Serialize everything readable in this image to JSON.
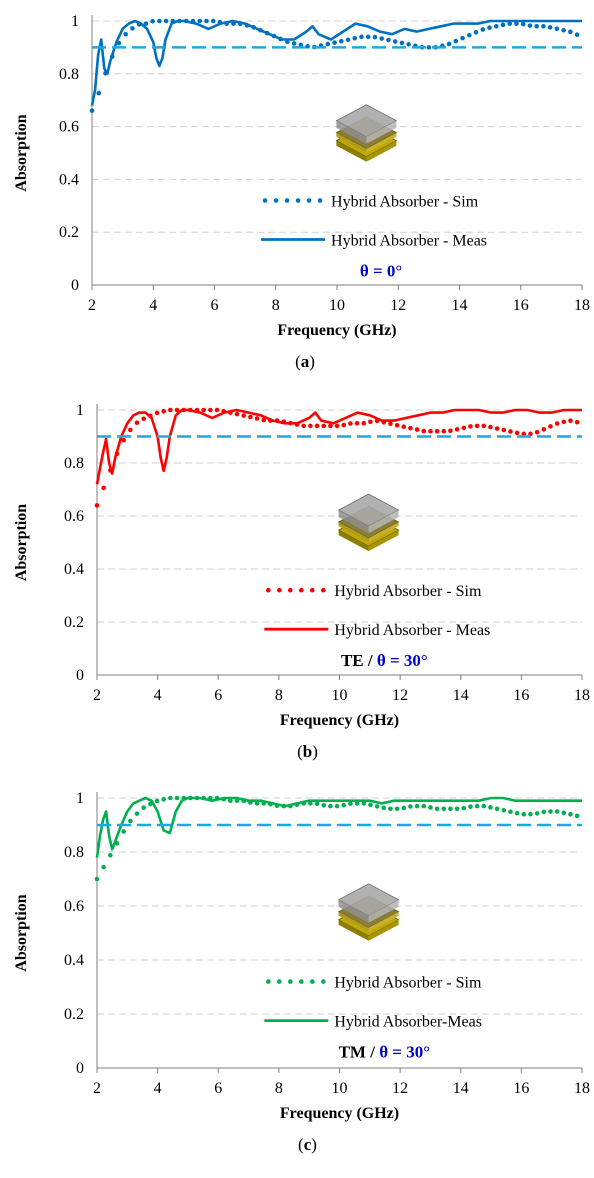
{
  "chart_data": [
    {
      "type": "line",
      "panel_label": "a",
      "xlabel": "Frequency (GHz)",
      "ylabel": "Absorption",
      "xlim": [
        2,
        18
      ],
      "ylim": [
        0,
        1
      ],
      "x_ticks": [
        "2",
        "4",
        "6",
        "8",
        "10",
        "12",
        "14",
        "16",
        "18"
      ],
      "y_ticks": [
        "0",
        "0.2",
        "0.4",
        "0.6",
        "0.8",
        "1"
      ],
      "grid": true,
      "legend_position": "center-right",
      "color": "#0070c0",
      "annotation": {
        "prefix": "",
        "angle": "θ = 0°"
      },
      "series": [
        {
          "name": "Hybrid Absorber - Sim",
          "style": "dotted",
          "x": [
            2.0,
            2.2,
            2.4,
            2.6,
            2.8,
            3.0,
            3.2,
            3.4,
            3.6,
            3.8,
            4.0,
            4.4,
            4.8,
            5.2,
            5.6,
            6.0,
            6.4,
            6.8,
            7.2,
            7.6,
            8.0,
            8.4,
            8.8,
            9.2,
            9.6,
            10.0,
            10.4,
            10.8,
            11.2,
            11.6,
            12.0,
            12.4,
            12.8,
            13.2,
            13.6,
            14.0,
            14.4,
            14.8,
            15.2,
            15.6,
            16.0,
            16.4,
            16.8,
            17.2,
            17.6,
            18.0
          ],
          "y": [
            0.66,
            0.72,
            0.79,
            0.85,
            0.9,
            0.94,
            0.96,
            0.98,
            0.99,
            0.99,
            1.0,
            1.0,
            1.0,
            1.0,
            1.0,
            1.0,
            0.99,
            0.99,
            0.98,
            0.96,
            0.94,
            0.92,
            0.91,
            0.9,
            0.91,
            0.92,
            0.93,
            0.94,
            0.94,
            0.93,
            0.92,
            0.91,
            0.9,
            0.9,
            0.91,
            0.93,
            0.95,
            0.97,
            0.98,
            0.99,
            0.99,
            0.98,
            0.98,
            0.97,
            0.96,
            0.94
          ]
        },
        {
          "name": "Hybrid Absorber - Meas",
          "style": "solid",
          "x": [
            2.0,
            2.1,
            2.2,
            2.3,
            2.4,
            2.5,
            2.6,
            2.8,
            3.0,
            3.2,
            3.4,
            3.6,
            3.8,
            4.0,
            4.1,
            4.2,
            4.3,
            4.4,
            4.6,
            4.8,
            5.0,
            5.4,
            5.8,
            6.2,
            6.6,
            7.0,
            7.4,
            7.8,
            8.2,
            8.6,
            9.0,
            9.2,
            9.4,
            9.8,
            10.2,
            10.6,
            11.0,
            11.4,
            11.8,
            12.2,
            12.6,
            13.0,
            13.4,
            13.8,
            14.2,
            14.6,
            15.0,
            15.4,
            15.8,
            16.2,
            16.6,
            17.0,
            17.4,
            17.8,
            18.0
          ],
          "y": [
            0.68,
            0.74,
            0.87,
            0.93,
            0.82,
            0.8,
            0.85,
            0.92,
            0.97,
            0.99,
            1.0,
            0.99,
            0.97,
            0.92,
            0.86,
            0.83,
            0.86,
            0.93,
            0.99,
            1.0,
            1.0,
            0.99,
            0.97,
            0.99,
            1.0,
            0.99,
            0.97,
            0.95,
            0.93,
            0.93,
            0.96,
            0.98,
            0.95,
            0.93,
            0.96,
            0.99,
            0.98,
            0.96,
            0.95,
            0.97,
            0.96,
            0.97,
            0.98,
            0.99,
            0.99,
            0.99,
            1.0,
            1.0,
            1.0,
            1.0,
            1.0,
            1.0,
            1.0,
            1.0,
            1.0
          ]
        },
        {
          "name": "",
          "style": "dashed",
          "x": [
            2,
            18
          ],
          "y": [
            0.9,
            0.9
          ]
        }
      ]
    },
    {
      "type": "line",
      "panel_label": "b",
      "xlabel": "Frequency (GHz)",
      "ylabel": "Absorption",
      "xlim": [
        2,
        18
      ],
      "ylim": [
        0,
        1
      ],
      "x_ticks": [
        "2",
        "4",
        "6",
        "8",
        "10",
        "12",
        "14",
        "16",
        "18"
      ],
      "y_ticks": [
        "0",
        "0.2",
        "0.4",
        "0.6",
        "0.8",
        "1"
      ],
      "grid": true,
      "legend_position": "center-right",
      "color": "#ff0000",
      "annotation": {
        "prefix": "TE / ",
        "angle": "θ = 30°"
      },
      "series": [
        {
          "name": "Hybrid Absorber - Sim",
          "style": "dotted",
          "x": [
            2.0,
            2.2,
            2.4,
            2.6,
            2.8,
            3.0,
            3.2,
            3.4,
            3.6,
            3.8,
            4.0,
            4.4,
            4.8,
            5.2,
            5.6,
            6.0,
            6.4,
            6.8,
            7.2,
            7.6,
            8.0,
            8.4,
            8.8,
            9.2,
            9.6,
            10.0,
            10.4,
            10.8,
            11.2,
            11.6,
            12.0,
            12.4,
            12.8,
            13.2,
            13.6,
            14.0,
            14.4,
            14.8,
            15.2,
            15.6,
            16.0,
            16.4,
            16.8,
            17.2,
            17.6,
            18.0
          ],
          "y": [
            0.64,
            0.7,
            0.76,
            0.82,
            0.87,
            0.91,
            0.94,
            0.96,
            0.97,
            0.98,
            0.99,
            1.0,
            1.0,
            1.0,
            1.0,
            1.0,
            0.99,
            0.98,
            0.97,
            0.96,
            0.96,
            0.95,
            0.94,
            0.94,
            0.94,
            0.94,
            0.95,
            0.95,
            0.96,
            0.95,
            0.94,
            0.93,
            0.92,
            0.92,
            0.92,
            0.93,
            0.94,
            0.94,
            0.93,
            0.92,
            0.91,
            0.91,
            0.93,
            0.95,
            0.96,
            0.95
          ]
        },
        {
          "name": "Hybrid Absorber - Meas",
          "style": "solid",
          "x": [
            2.0,
            2.1,
            2.2,
            2.3,
            2.4,
            2.5,
            2.6,
            2.8,
            3.0,
            3.2,
            3.4,
            3.6,
            3.8,
            4.0,
            4.1,
            4.2,
            4.3,
            4.4,
            4.6,
            4.8,
            5.0,
            5.4,
            5.8,
            6.2,
            6.6,
            7.0,
            7.4,
            7.8,
            8.2,
            8.6,
            9.0,
            9.2,
            9.4,
            9.8,
            10.2,
            10.6,
            11.0,
            11.4,
            11.8,
            12.2,
            12.6,
            13.0,
            13.4,
            13.8,
            14.2,
            14.6,
            15.0,
            15.4,
            15.8,
            16.2,
            16.6,
            17.0,
            17.4,
            17.8,
            18.0
          ],
          "y": [
            0.72,
            0.78,
            0.84,
            0.89,
            0.8,
            0.76,
            0.82,
            0.9,
            0.95,
            0.98,
            0.99,
            0.99,
            0.97,
            0.9,
            0.82,
            0.77,
            0.82,
            0.9,
            0.98,
            1.0,
            1.0,
            0.99,
            0.97,
            0.99,
            1.0,
            0.99,
            0.98,
            0.96,
            0.95,
            0.95,
            0.97,
            0.99,
            0.96,
            0.95,
            0.97,
            0.99,
            0.98,
            0.96,
            0.96,
            0.97,
            0.98,
            0.99,
            0.99,
            1.0,
            1.0,
            1.0,
            0.99,
            0.99,
            1.0,
            1.0,
            0.99,
            0.99,
            1.0,
            1.0,
            1.0
          ]
        },
        {
          "name": "",
          "style": "dashed",
          "x": [
            2,
            18
          ],
          "y": [
            0.9,
            0.9
          ]
        }
      ]
    },
    {
      "type": "line",
      "panel_label": "c",
      "xlabel": "Frequency (GHz)",
      "ylabel": "Absorption",
      "xlim": [
        2,
        18
      ],
      "ylim": [
        0,
        1
      ],
      "x_ticks": [
        "2",
        "4",
        "6",
        "8",
        "10",
        "12",
        "14",
        "16",
        "18"
      ],
      "y_ticks": [
        "0",
        "0.2",
        "0.4",
        "0.6",
        "0.8",
        "1"
      ],
      "grid": true,
      "legend_position": "center-right",
      "color": "#00b050",
      "annotation": {
        "prefix": "TM / ",
        "angle": "θ = 30°"
      },
      "series": [
        {
          "name": "Hybrid Absorber - Sim",
          "style": "dotted",
          "x": [
            2.0,
            2.2,
            2.4,
            2.6,
            2.8,
            3.0,
            3.2,
            3.4,
            3.6,
            3.8,
            4.0,
            4.4,
            4.8,
            5.2,
            5.6,
            6.0,
            6.4,
            6.8,
            7.2,
            7.6,
            8.0,
            8.4,
            8.8,
            9.2,
            9.6,
            10.0,
            10.4,
            10.8,
            11.2,
            11.6,
            12.0,
            12.4,
            12.8,
            13.2,
            13.6,
            14.0,
            14.4,
            14.8,
            15.2,
            15.6,
            16.0,
            16.4,
            16.8,
            17.2,
            17.6,
            18.0
          ],
          "y": [
            0.7,
            0.74,
            0.78,
            0.82,
            0.86,
            0.9,
            0.93,
            0.95,
            0.97,
            0.98,
            0.99,
            1.0,
            1.0,
            1.0,
            1.0,
            1.0,
            0.99,
            0.99,
            0.98,
            0.98,
            0.97,
            0.97,
            0.98,
            0.98,
            0.97,
            0.97,
            0.98,
            0.98,
            0.97,
            0.96,
            0.96,
            0.97,
            0.97,
            0.96,
            0.96,
            0.96,
            0.97,
            0.97,
            0.96,
            0.95,
            0.94,
            0.94,
            0.95,
            0.95,
            0.94,
            0.93
          ]
        },
        {
          "name": "Hybrid Absorber-Meas",
          "style": "solid",
          "x": [
            2.0,
            2.1,
            2.2,
            2.3,
            2.4,
            2.5,
            2.6,
            2.8,
            3.0,
            3.2,
            3.4,
            3.6,
            3.8,
            4.0,
            4.2,
            4.4,
            4.6,
            4.8,
            5.0,
            5.4,
            5.8,
            6.2,
            6.6,
            7.0,
            7.4,
            7.8,
            8.2,
            8.6,
            9.0,
            9.4,
            9.8,
            10.2,
            10.6,
            11.0,
            11.4,
            11.8,
            12.2,
            12.6,
            13.0,
            13.4,
            13.8,
            14.2,
            14.6,
            15.0,
            15.4,
            15.8,
            16.2,
            16.6,
            17.0,
            17.4,
            17.8,
            18.0
          ],
          "y": [
            0.78,
            0.86,
            0.92,
            0.95,
            0.86,
            0.81,
            0.84,
            0.9,
            0.95,
            0.98,
            0.99,
            1.0,
            0.99,
            0.95,
            0.88,
            0.87,
            0.95,
            0.99,
            1.0,
            1.0,
            0.99,
            1.0,
            1.0,
            0.99,
            0.99,
            0.98,
            0.97,
            0.98,
            0.99,
            0.99,
            0.99,
            0.99,
            0.99,
            0.99,
            0.98,
            0.99,
            0.99,
            0.99,
            0.99,
            0.99,
            0.99,
            0.99,
            0.99,
            1.0,
            1.0,
            0.99,
            0.99,
            0.99,
            0.99,
            0.99,
            0.99,
            0.99
          ]
        },
        {
          "name": "",
          "style": "dashed",
          "x": [
            2,
            18
          ],
          "y": [
            0.9,
            0.9
          ]
        }
      ]
    }
  ]
}
